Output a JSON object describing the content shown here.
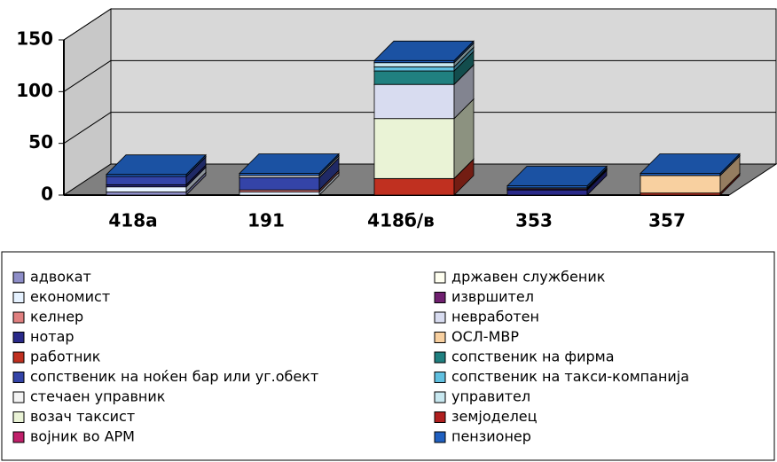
{
  "chart_data": {
    "type": "bar3d_stacked",
    "categories": [
      "418а",
      "191",
      "418б/в",
      "353",
      "357"
    ],
    "ylim": [
      0,
      150
    ],
    "yticks": [
      0,
      50,
      100,
      150
    ],
    "grid": true,
    "legend": "bottom",
    "series": [
      {
        "name": "адвокат",
        "color": "#8e8ec8",
        "values": [
          3,
          0,
          0,
          0,
          0
        ]
      },
      {
        "name": "економист",
        "color": "#e6f2ff",
        "values": [
          5,
          3,
          0,
          0,
          0
        ]
      },
      {
        "name": "келнер",
        "color": "#e08080",
        "values": [
          0,
          2,
          0,
          0,
          0
        ]
      },
      {
        "name": "нотар",
        "color": "#2a2a8a",
        "values": [
          2,
          0,
          0,
          5,
          0
        ]
      },
      {
        "name": "работник",
        "color": "#c03020",
        "values": [
          0,
          0,
          16,
          0,
          2
        ]
      },
      {
        "name": "сопственик на ноќен бар или уг.обект",
        "color": "#3444a8",
        "values": [
          8,
          12,
          0,
          0,
          0
        ]
      },
      {
        "name": "стечаен управник",
        "color": "#f4f4f4",
        "values": [
          0,
          2,
          0,
          0,
          0
        ]
      },
      {
        "name": "возач таксист",
        "color": "#eaf3d6",
        "values": [
          0,
          0,
          58,
          0,
          0
        ]
      },
      {
        "name": "војник во АРМ",
        "color": "#c0206a",
        "values": [
          0,
          0,
          0,
          0,
          0
        ]
      },
      {
        "name": "државен службеник",
        "color": "#fffff0",
        "values": [
          0,
          0,
          0,
          0,
          0
        ]
      },
      {
        "name": "извршител",
        "color": "#702070",
        "values": [
          0,
          0,
          0,
          1,
          0
        ]
      },
      {
        "name": "невработен",
        "color": "#d8dcf0",
        "values": [
          0,
          0,
          33,
          1,
          0
        ]
      },
      {
        "name": "ОСЛ-МВР",
        "color": "#f8d0a0",
        "values": [
          0,
          0,
          0,
          0,
          17
        ]
      },
      {
        "name": "сопственик на фирма",
        "color": "#208080",
        "values": [
          0,
          0,
          13,
          0,
          0
        ]
      },
      {
        "name": "сопственик на такси-компанија",
        "color": "#60c0e0",
        "values": [
          0,
          0,
          4,
          0,
          0
        ]
      },
      {
        "name": "управител",
        "color": "#c8e8f0",
        "values": [
          0,
          0,
          4,
          0,
          0
        ]
      },
      {
        "name": "земјоделец",
        "color": "#b02020",
        "values": [
          0,
          0,
          0,
          0,
          0
        ]
      },
      {
        "name": "пензионер",
        "color": "#2060c0",
        "values": [
          2,
          2,
          2,
          2,
          2
        ]
      }
    ]
  }
}
